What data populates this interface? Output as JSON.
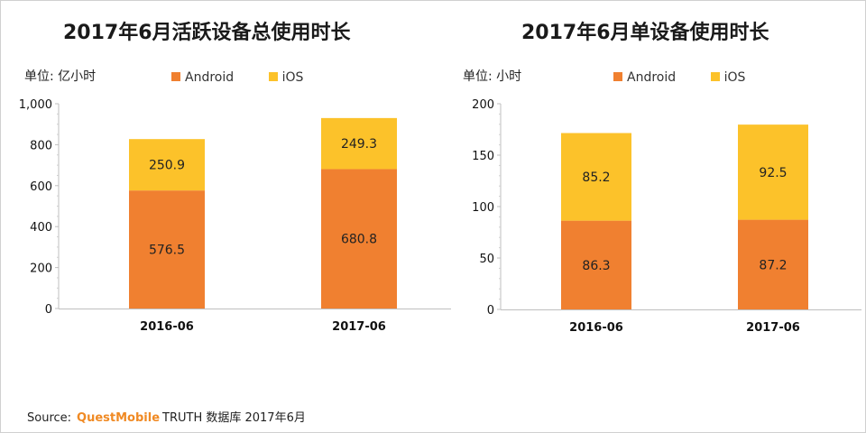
{
  "chart_data": [
    {
      "type": "bar",
      "stacked": true,
      "title": "2017年6月活跃设备总使用时长",
      "unit_label": "单位: 亿小时",
      "categories": [
        "2016-06",
        "2017-06"
      ],
      "series": [
        {
          "name": "Android",
          "color": "#f08030",
          "values": [
            576.5,
            680.8
          ]
        },
        {
          "name": "iOS",
          "color": "#fcc22a",
          "values": [
            250.9,
            249.3
          ]
        }
      ],
      "yticks": [
        "0",
        "200",
        "400",
        "600",
        "800",
        "1,000"
      ],
      "ylim": [
        0,
        1000
      ],
      "xlabel": "",
      "ylabel": ""
    },
    {
      "type": "bar",
      "stacked": true,
      "title": "2017年6月单设备使用时长",
      "unit_label": "单位: 小时",
      "categories": [
        "2016-06",
        "2017-06"
      ],
      "series": [
        {
          "name": "Android",
          "color": "#f08030",
          "values": [
            86.3,
            87.2
          ]
        },
        {
          "name": "iOS",
          "color": "#fcc22a",
          "values": [
            85.2,
            92.5
          ]
        }
      ],
      "yticks": [
        "0",
        "50",
        "100",
        "150",
        "200"
      ],
      "ylim": [
        0,
        200
      ],
      "xlabel": "",
      "ylabel": ""
    }
  ],
  "source": {
    "prefix": "Source:",
    "brand": "QuestMobile",
    "suffix": "TRUTH 数据库 2017年6月"
  }
}
